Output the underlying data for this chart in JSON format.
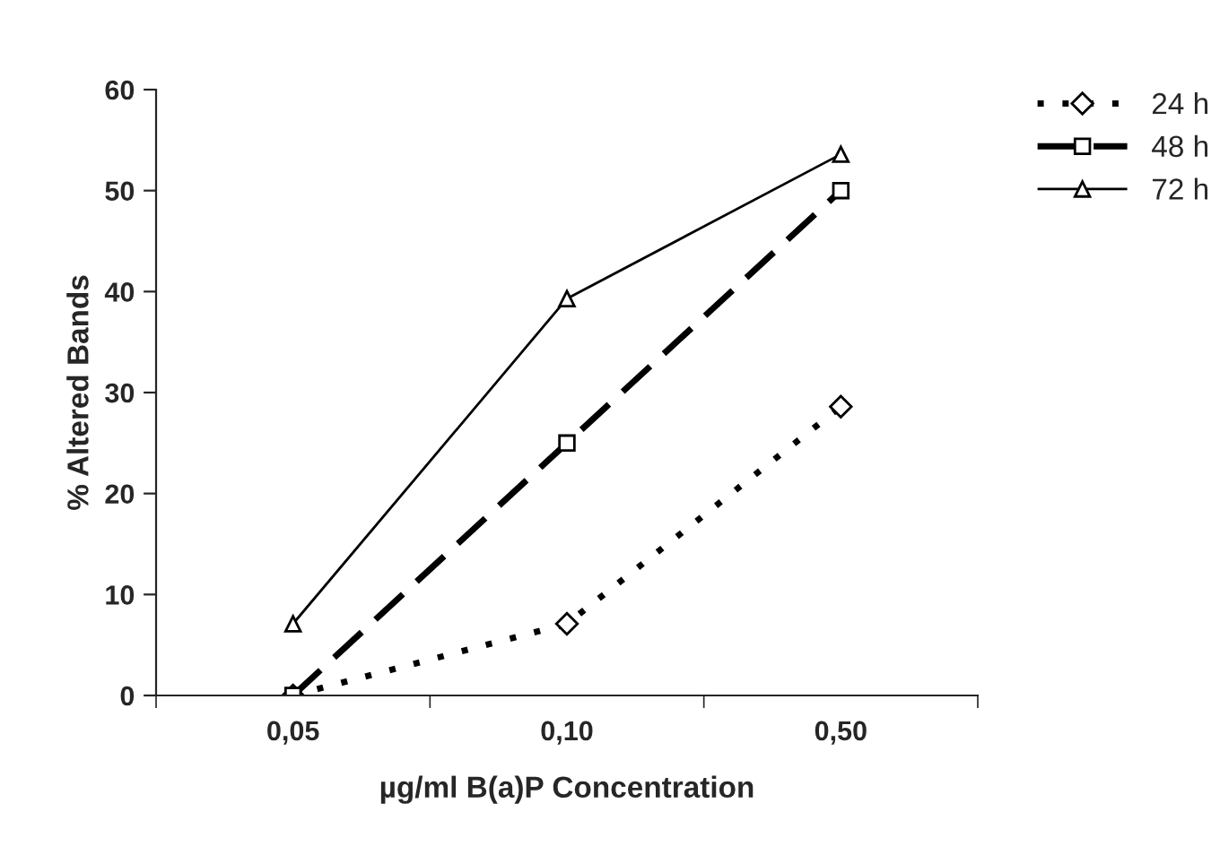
{
  "chart_data": {
    "type": "line",
    "xlabel": "µg/ml B(a)P Concentration",
    "ylabel": "% Altered Bands",
    "categories": [
      "0,05",
      "0,10",
      "0,50"
    ],
    "series": [
      {
        "name": "24 h",
        "color": "#000000",
        "values": [
          0,
          7.1,
          28.6
        ],
        "marker": "diamond",
        "line_style": "dotted"
      },
      {
        "name": "48 h",
        "color": "#000000",
        "values": [
          0,
          25,
          50
        ],
        "marker": "square",
        "line_style": "dashed"
      },
      {
        "name": "72 h",
        "color": "#000000",
        "values": [
          7.1,
          39.3,
          53.6
        ],
        "marker": "triangle",
        "line_style": "solid"
      }
    ],
    "ylim": [
      0,
      60
    ],
    "yticks": [
      0,
      10,
      20,
      30,
      40,
      50,
      60
    ],
    "grid": false,
    "legend": "top right"
  }
}
